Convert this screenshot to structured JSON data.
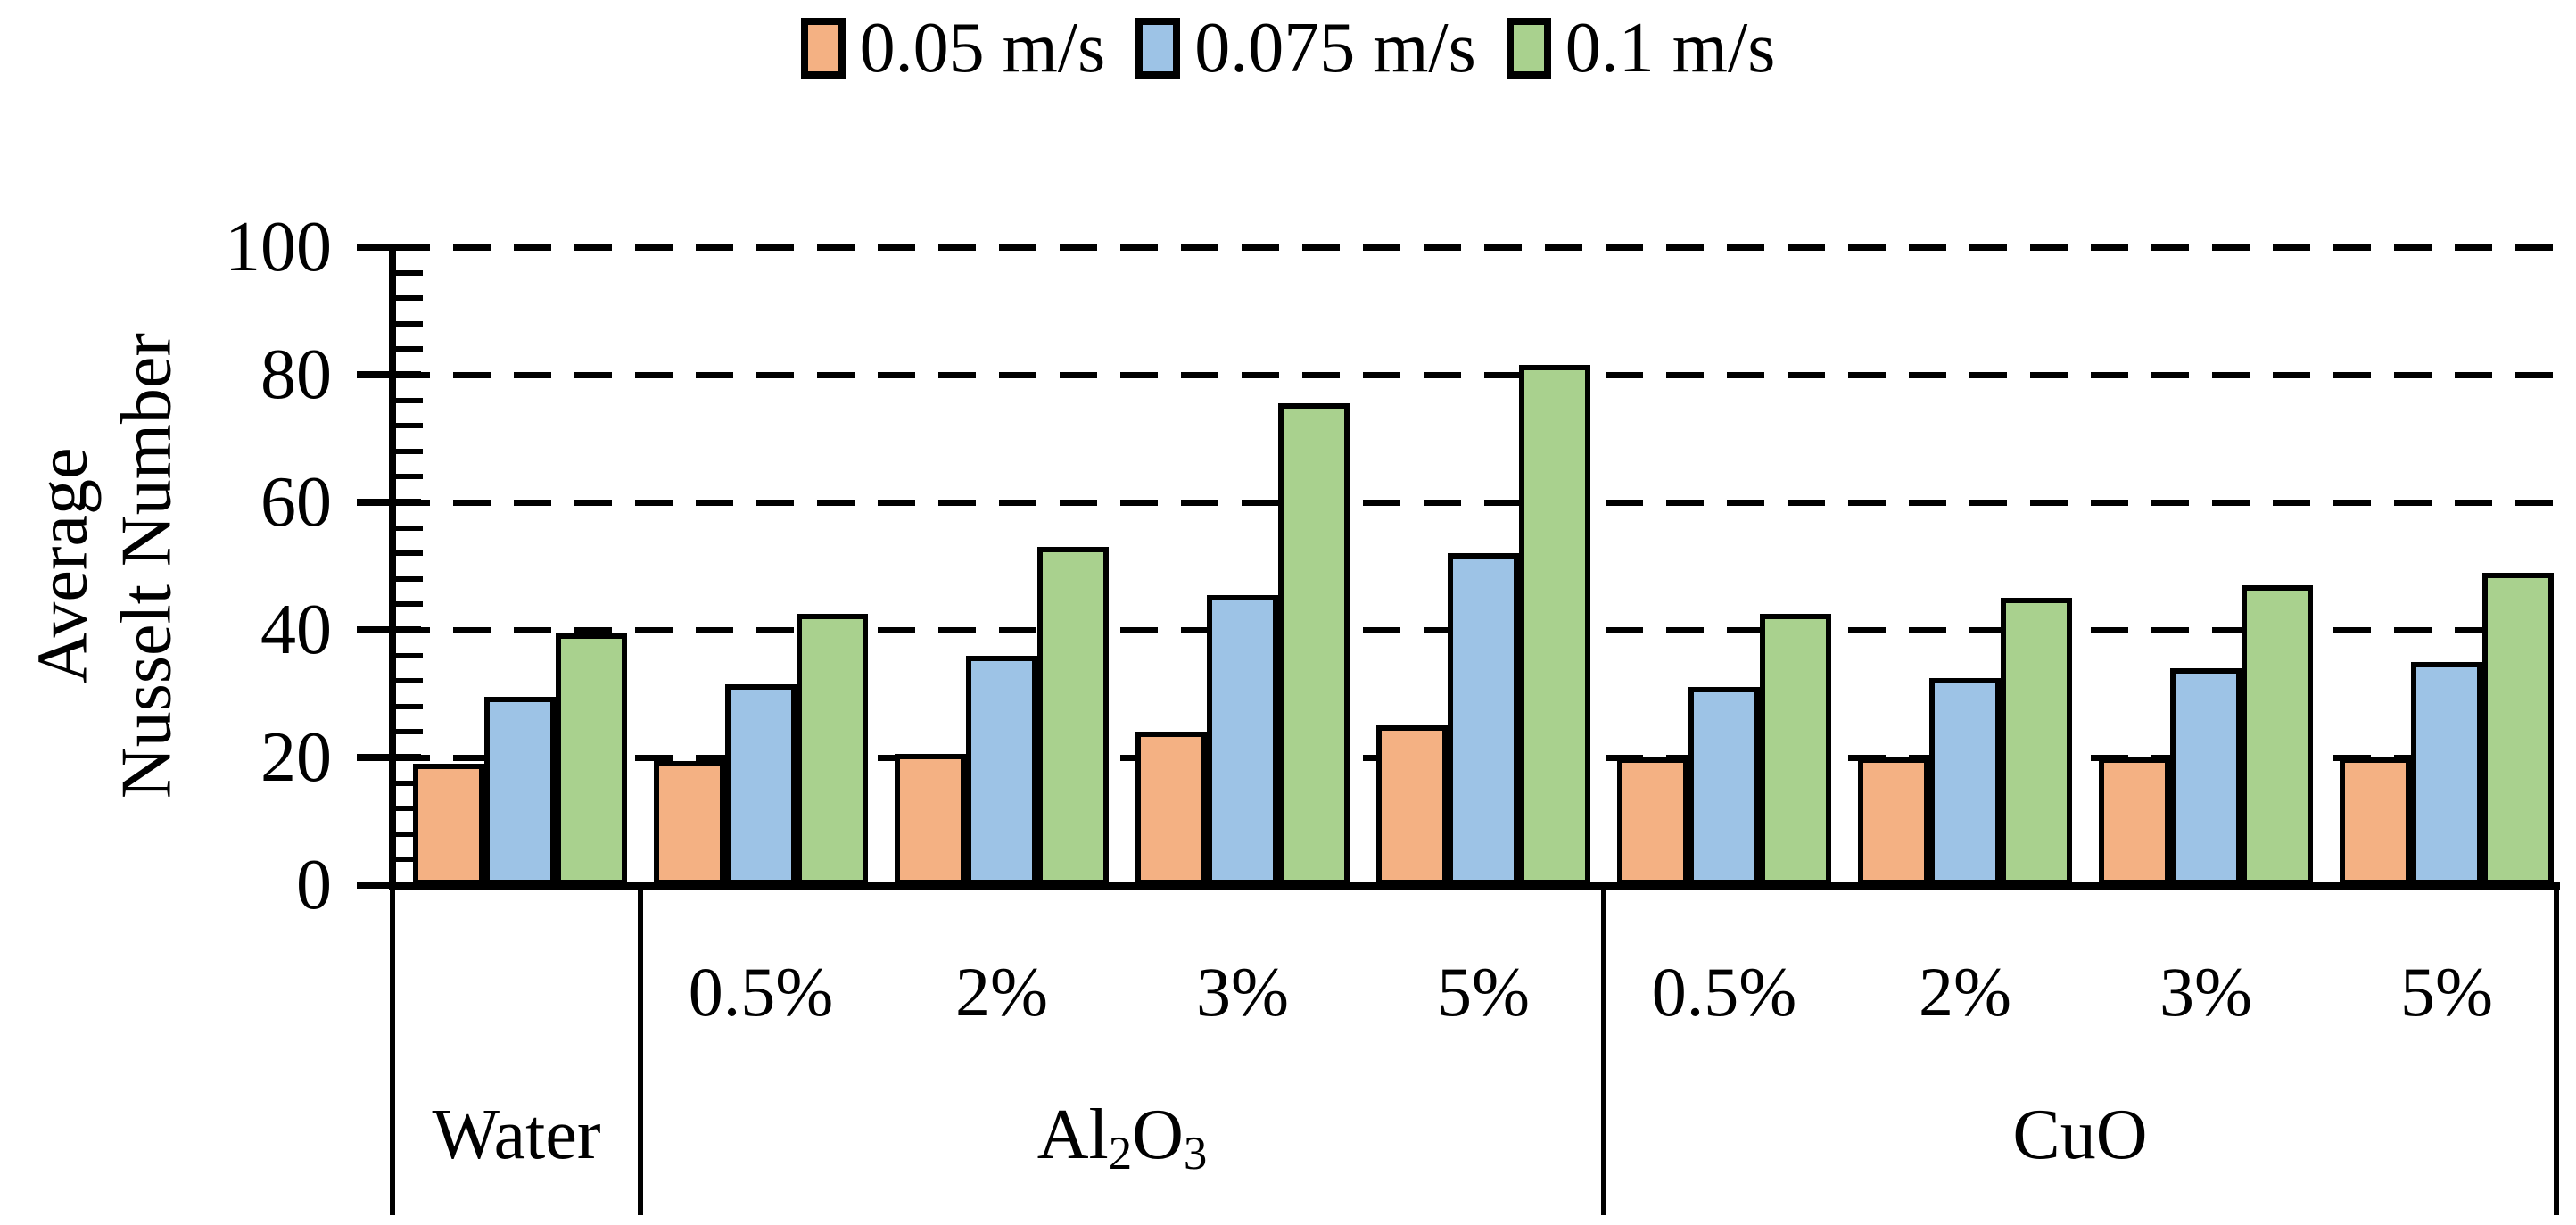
{
  "chart_data": {
    "type": "bar",
    "title": "",
    "ylabel": "Average Nusselt Number",
    "ylabel_lines": [
      "Average",
      "Nusselt Number"
    ],
    "xlabel": "",
    "ylim": [
      0,
      100
    ],
    "y_ticks": [
      0,
      20,
      40,
      60,
      80,
      100
    ],
    "y_minor_tick_step": 4,
    "grid": "horizontal-dashed",
    "legend_position": "top-center",
    "categories": [
      "Water",
      "Al2O3 0.5%",
      "Al2O3 2%",
      "Al2O3 3%",
      "Al2O3 5%",
      "CuO 0.5%",
      "CuO 2%",
      "CuO 3%",
      "CuO 5%"
    ],
    "category_tick_labels": [
      "",
      "0.5%",
      "2%",
      "3%",
      "5%",
      "0.5%",
      "2%",
      "3%",
      "5%"
    ],
    "groups": [
      {
        "label": "Water",
        "label_parts": [
          [
            "Water",
            false
          ]
        ],
        "start": 0,
        "end": 0
      },
      {
        "label": "Al2O3",
        "label_parts": [
          [
            "Al",
            false
          ],
          [
            "2",
            true
          ],
          [
            "O",
            false
          ],
          [
            "3",
            true
          ]
        ],
        "start": 1,
        "end": 4
      },
      {
        "label": "CuO",
        "label_parts": [
          [
            "CuO",
            false
          ]
        ],
        "start": 5,
        "end": 8
      }
    ],
    "series": [
      {
        "name": "0.05 m/s",
        "color": "#F4B183",
        "values": [
          19,
          19.5,
          20.5,
          24,
          25,
          20,
          20,
          20,
          20
        ]
      },
      {
        "name": "0.075 m/s",
        "color": "#9DC3E6",
        "values": [
          29.5,
          31.5,
          36,
          45.5,
          52,
          31,
          32.5,
          34,
          35
        ]
      },
      {
        "name": "0.1 m/s",
        "color": "#A9D18E",
        "values": [
          39.5,
          42.5,
          53,
          75.5,
          81.5,
          42.5,
          45,
          47,
          49
        ]
      }
    ]
  }
}
